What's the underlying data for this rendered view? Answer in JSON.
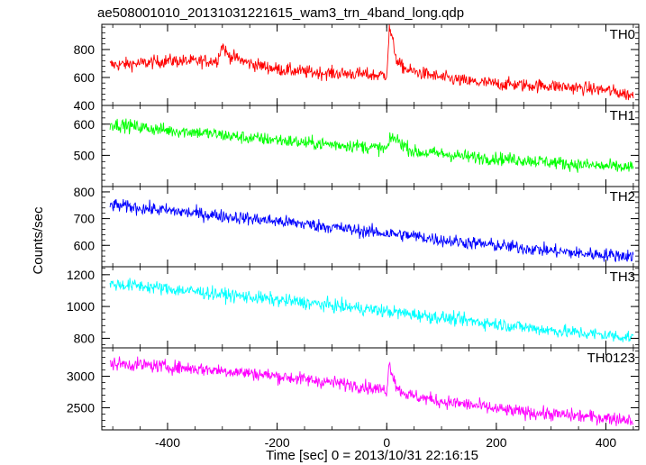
{
  "chart_data": {
    "type": "line",
    "title": "ae508001010_20131031221615_wam3_trn_4band_long.qdp",
    "xlabel": "Time [sec] 0 = 2013/10/31 22:16:15",
    "ylabel": "Counts/sec",
    "xlim": [
      -520,
      460
    ],
    "x_ticks": [
      -400,
      -200,
      0,
      200,
      400
    ],
    "panels": [
      {
        "name": "TH0",
        "color": "#ff0000",
        "ylim": [
          400,
          980
        ],
        "y_ticks": [
          400,
          600,
          800
        ],
        "series": {
          "x": [
            -500,
            -450,
            -400,
            -350,
            -310,
            -300,
            -290,
            -250,
            -200,
            -150,
            -100,
            -50,
            -20,
            0,
            5,
            10,
            20,
            40,
            100,
            150,
            200,
            250,
            300,
            350,
            400,
            450
          ],
          "y": [
            690,
            700,
            720,
            715,
            720,
            830,
            760,
            700,
            660,
            640,
            630,
            625,
            615,
            620,
            960,
            870,
            700,
            650,
            600,
            570,
            555,
            545,
            540,
            525,
            510,
            470
          ]
        }
      },
      {
        "name": "TH1",
        "color": "#00ff00",
        "ylim": [
          400,
          660
        ],
        "y_ticks": [
          500,
          600
        ],
        "series": {
          "x": [
            -500,
            -450,
            -400,
            -350,
            -300,
            -250,
            -200,
            -150,
            -100,
            -50,
            0,
            10,
            50,
            100,
            150,
            200,
            250,
            300,
            350,
            400,
            450
          ],
          "y": [
            600,
            590,
            580,
            575,
            565,
            555,
            550,
            540,
            535,
            530,
            520,
            560,
            510,
            505,
            495,
            490,
            485,
            478,
            470,
            465,
            460
          ]
        }
      },
      {
        "name": "TH2",
        "color": "#0000ff",
        "ylim": [
          520,
          820
        ],
        "y_ticks": [
          600,
          700,
          800
        ],
        "series": {
          "x": [
            -500,
            -450,
            -400,
            -350,
            -300,
            -250,
            -200,
            -150,
            -100,
            -50,
            0,
            50,
            100,
            150,
            200,
            250,
            300,
            350,
            400,
            450
          ],
          "y": [
            750,
            740,
            730,
            720,
            710,
            700,
            690,
            680,
            668,
            655,
            645,
            635,
            620,
            610,
            600,
            590,
            580,
            570,
            565,
            560
          ]
        }
      },
      {
        "name": "TH3",
        "color": "#00ffff",
        "ylim": [
          740,
          1250
        ],
        "y_ticks": [
          800,
          1000,
          1200
        ],
        "series": {
          "x": [
            -500,
            -450,
            -400,
            -350,
            -300,
            -250,
            -200,
            -150,
            -100,
            -50,
            0,
            50,
            100,
            150,
            200,
            250,
            300,
            350,
            400,
            450
          ],
          "y": [
            1140,
            1130,
            1110,
            1095,
            1075,
            1060,
            1040,
            1025,
            1005,
            990,
            970,
            950,
            930,
            910,
            890,
            870,
            850,
            835,
            820,
            805
          ]
        }
      },
      {
        "name": "TH0123",
        "color": "#ff00ff",
        "ylim": [
          2150,
          3450
        ],
        "y_ticks": [
          2500,
          3000
        ],
        "series": {
          "x": [
            -500,
            -450,
            -400,
            -350,
            -300,
            -250,
            -200,
            -150,
            -100,
            -50,
            -20,
            0,
            5,
            10,
            20,
            40,
            100,
            150,
            200,
            250,
            300,
            350,
            400,
            450
          ],
          "y": [
            3200,
            3180,
            3150,
            3120,
            3090,
            3050,
            3000,
            2950,
            2900,
            2850,
            2800,
            2780,
            3220,
            3050,
            2800,
            2700,
            2600,
            2550,
            2480,
            2430,
            2400,
            2370,
            2340,
            2310
          ]
        }
      }
    ]
  }
}
